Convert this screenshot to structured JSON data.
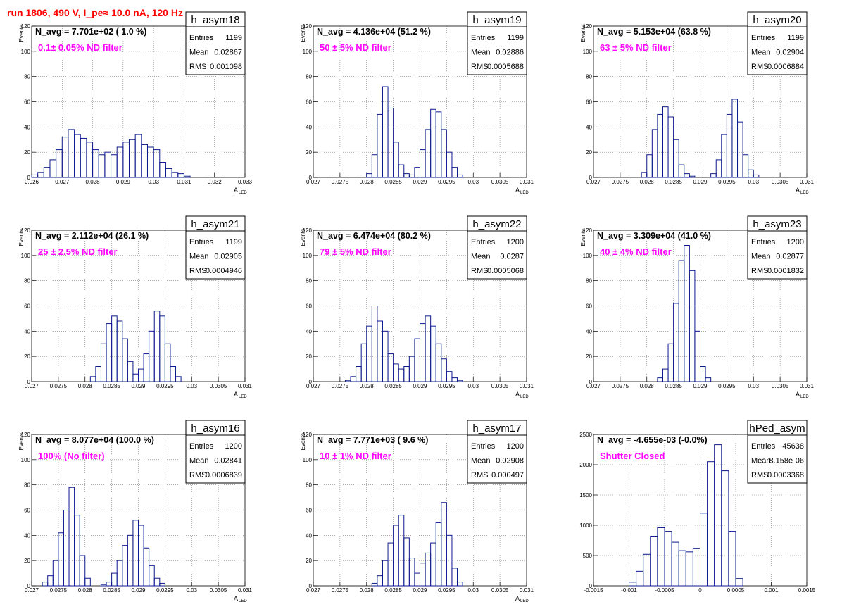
{
  "canvas_title": "run 1806,   490 V, I_pe≈ 10.0 nA, 120 Hz",
  "colors": {
    "hist": "#0b1a8c",
    "label": "#ff00ff",
    "title": "#ff0000",
    "grid": "#777777"
  },
  "chart_data": [
    {
      "type": "histogram",
      "name": "h_asym18",
      "nav": "N_avg = 7.701e+02 ( 1.0 %)",
      "filter": "0.1± 0.05% ND filter",
      "stats": [
        [
          "Entries",
          "1199"
        ],
        [
          "Mean",
          "0.02867"
        ],
        [
          "RMS",
          "0.001098"
        ]
      ],
      "ylabel": "Events",
      "xlabel": "A",
      "xlabel_sub": "LED",
      "xlim": [
        0.026,
        0.033
      ],
      "ylim": [
        0,
        120
      ],
      "xticks": [
        0.026,
        0.027,
        0.028,
        0.029,
        0.03,
        0.031,
        0.032,
        0.033
      ],
      "xtick_labels": [
        "0.026",
        "0.027",
        "0.028",
        "0.029",
        "0.03",
        "0.031",
        "0.032",
        "0.033"
      ],
      "yticks": [
        0,
        20,
        40,
        60,
        80,
        100,
        120
      ],
      "ytick_labels": [
        "0",
        "20",
        "40",
        "60",
        "80",
        "100",
        "120"
      ],
      "x": [
        0.0261,
        0.0263,
        0.0265,
        0.0267,
        0.0269,
        0.0271,
        0.0273,
        0.0275,
        0.0277,
        0.0279,
        0.0281,
        0.0283,
        0.0285,
        0.0287,
        0.0289,
        0.0291,
        0.0293,
        0.0295,
        0.0297,
        0.0299,
        0.0301,
        0.0303,
        0.0305,
        0.0307,
        0.0309,
        0.0311
      ],
      "y": [
        2,
        4,
        8,
        14,
        22,
        32,
        38,
        34,
        31,
        28,
        22,
        18,
        20,
        18,
        24,
        28,
        30,
        34,
        26,
        24,
        22,
        12,
        7,
        4,
        3,
        1
      ]
    },
    {
      "type": "histogram",
      "name": "h_asym19",
      "nav": "N_avg = 4.136e+04 (51.2 %)",
      "filter": "50 ± 5% ND filter",
      "stats": [
        [
          "Entries",
          "1199"
        ],
        [
          "Mean",
          "0.02886"
        ],
        [
          "RMS",
          "0.0005688"
        ]
      ],
      "ylabel": "Events",
      "xlabel": "A",
      "xlabel_sub": "LED",
      "xlim": [
        0.027,
        0.031
      ],
      "ylim": [
        0,
        120
      ],
      "xticks": [
        0.027,
        0.0275,
        0.028,
        0.0285,
        0.029,
        0.0295,
        0.03,
        0.0305,
        0.031
      ],
      "xtick_labels": [
        "0.027",
        "0.0275",
        "0.028",
        "0.0285",
        "0.029",
        "0.0295",
        "0.03",
        "0.0305",
        "0.031"
      ],
      "yticks": [
        0,
        20,
        40,
        60,
        80,
        100,
        120
      ],
      "ytick_labels": [
        "0",
        "20",
        "40",
        "60",
        "80",
        "100",
        "120"
      ],
      "x": [
        0.02805,
        0.02815,
        0.02825,
        0.02835,
        0.02845,
        0.02855,
        0.02865,
        0.02875,
        0.02885,
        0.02895,
        0.02905,
        0.02915,
        0.02925,
        0.02935,
        0.02945,
        0.02955,
        0.02965,
        0.02975
      ],
      "y": [
        3,
        18,
        50,
        72,
        55,
        28,
        10,
        3,
        2,
        8,
        22,
        38,
        54,
        52,
        38,
        20,
        8,
        2
      ]
    },
    {
      "type": "histogram",
      "name": "h_asym20",
      "nav": "N_avg = 5.153e+04 (63.8 %)",
      "filter": "63 ± 5% ND filter",
      "stats": [
        [
          "Entries",
          "1199"
        ],
        [
          "Mean",
          "0.02904"
        ],
        [
          "RMS",
          "0.0006884"
        ]
      ],
      "ylabel": "Events",
      "xlabel": "A",
      "xlabel_sub": "LED",
      "xlim": [
        0.027,
        0.031
      ],
      "ylim": [
        0,
        120
      ],
      "xticks": [
        0.027,
        0.0275,
        0.028,
        0.0285,
        0.029,
        0.0295,
        0.03,
        0.0305,
        0.031
      ],
      "xtick_labels": [
        "0.027",
        "0.0275",
        "0.028",
        "0.0285",
        "0.029",
        "0.0295",
        "0.03",
        "0.0305",
        "0.031"
      ],
      "yticks": [
        0,
        20,
        40,
        60,
        80,
        100,
        120
      ],
      "ytick_labels": [
        "0",
        "20",
        "40",
        "60",
        "80",
        "100",
        "120"
      ],
      "x": [
        0.02795,
        0.02805,
        0.02815,
        0.02825,
        0.02835,
        0.02845,
        0.02855,
        0.02865,
        0.02875,
        0.02885,
        0.02925,
        0.02935,
        0.02945,
        0.02955,
        0.02965,
        0.02975,
        0.02985,
        0.02995,
        0.03005
      ],
      "y": [
        4,
        18,
        38,
        50,
        56,
        48,
        30,
        10,
        3,
        1,
        3,
        14,
        34,
        50,
        62,
        44,
        18,
        6,
        2
      ]
    },
    {
      "type": "histogram",
      "name": "h_asym21",
      "nav": "N_avg = 2.112e+04 (26.1 %)",
      "filter": "25 ± 2.5% ND filter",
      "stats": [
        [
          "Entries",
          "1199"
        ],
        [
          "Mean",
          "0.02905"
        ],
        [
          "RMS",
          "0.0004946"
        ]
      ],
      "ylabel": "Events",
      "xlabel": "A",
      "xlabel_sub": "LED",
      "xlim": [
        0.027,
        0.031
      ],
      "ylim": [
        0,
        120
      ],
      "xticks": [
        0.027,
        0.0275,
        0.028,
        0.0285,
        0.029,
        0.0295,
        0.03,
        0.0305,
        0.031
      ],
      "xtick_labels": [
        "0.027",
        "0.0275",
        "0.028",
        "0.0285",
        "0.029",
        "0.0295",
        "0.03",
        "0.0305",
        "0.031"
      ],
      "yticks": [
        0,
        20,
        40,
        60,
        80,
        100,
        120
      ],
      "ytick_labels": [
        "0",
        "20",
        "40",
        "60",
        "80",
        "100",
        "120"
      ],
      "x": [
        0.02815,
        0.02825,
        0.02835,
        0.02845,
        0.02855,
        0.02865,
        0.02875,
        0.02885,
        0.02895,
        0.02905,
        0.02915,
        0.02925,
        0.02935,
        0.02945,
        0.02955,
        0.02965,
        0.02975
      ],
      "y": [
        4,
        12,
        30,
        46,
        52,
        48,
        34,
        16,
        6,
        10,
        22,
        40,
        56,
        52,
        30,
        12,
        4
      ]
    },
    {
      "type": "histogram",
      "name": "h_asym22",
      "nav": "N_avg = 6.474e+04 (80.2 %)",
      "filter": "79 ± 5% ND filter",
      "stats": [
        [
          "Entries",
          "1200"
        ],
        [
          "Mean",
          "0.0287"
        ],
        [
          "RMS",
          "0.0005068"
        ]
      ],
      "ylabel": "Events",
      "xlabel": "A",
      "xlabel_sub": "LED",
      "xlim": [
        0.027,
        0.031
      ],
      "ylim": [
        0,
        120
      ],
      "xticks": [
        0.027,
        0.0275,
        0.028,
        0.0285,
        0.029,
        0.0295,
        0.03,
        0.0305,
        0.031
      ],
      "xtick_labels": [
        "0.027",
        "0.0275",
        "0.028",
        "0.0285",
        "0.029",
        "0.0295",
        "0.03",
        "0.0305",
        "0.031"
      ],
      "yticks": [
        0,
        20,
        40,
        60,
        80,
        100,
        120
      ],
      "ytick_labels": [
        "0",
        "20",
        "40",
        "60",
        "80",
        "100",
        "120"
      ],
      "x": [
        0.02765,
        0.02775,
        0.02785,
        0.02795,
        0.02805,
        0.02815,
        0.02825,
        0.02835,
        0.02845,
        0.02855,
        0.02865,
        0.02875,
        0.02885,
        0.02895,
        0.02905,
        0.02915,
        0.02925,
        0.02935,
        0.02945,
        0.02955,
        0.02965,
        0.02975
      ],
      "y": [
        1,
        4,
        12,
        30,
        44,
        60,
        48,
        40,
        22,
        14,
        10,
        12,
        20,
        34,
        46,
        52,
        44,
        30,
        18,
        8,
        3,
        1
      ]
    },
    {
      "type": "histogram",
      "name": "h_asym23",
      "nav": "N_avg = 3.309e+04 (41.0 %)",
      "filter": "40 ± 4% ND filter",
      "stats": [
        [
          "Entries",
          "1200"
        ],
        [
          "Mean",
          "0.02877"
        ],
        [
          "RMS",
          "0.0001832"
        ]
      ],
      "ylabel": "Events",
      "xlabel": "A",
      "xlabel_sub": "LED",
      "xlim": [
        0.027,
        0.031
      ],
      "ylim": [
        0,
        120
      ],
      "xticks": [
        0.027,
        0.0275,
        0.028,
        0.0285,
        0.029,
        0.0295,
        0.03,
        0.0305,
        0.031
      ],
      "xtick_labels": [
        "0.027",
        "0.0275",
        "0.028",
        "0.0285",
        "0.029",
        "0.0295",
        "0.03",
        "0.0305",
        "0.031"
      ],
      "yticks": [
        0,
        20,
        40,
        60,
        80,
        100,
        120
      ],
      "ytick_labels": [
        "0",
        "20",
        "40",
        "60",
        "80",
        "100",
        "120"
      ],
      "x": [
        0.02825,
        0.02835,
        0.02845,
        0.02855,
        0.02865,
        0.02875,
        0.02885,
        0.02895,
        0.02905,
        0.02915
      ],
      "y": [
        3,
        10,
        30,
        62,
        96,
        108,
        88,
        40,
        12,
        3
      ]
    },
    {
      "type": "histogram",
      "name": "h_asym16",
      "nav": "N_avg = 8.077e+04 (100.0 %)",
      "filter": "100% (No filter)",
      "stats": [
        [
          "Entries",
          "1200"
        ],
        [
          "Mean",
          "0.02841"
        ],
        [
          "RMS",
          "0.0006839"
        ]
      ],
      "ylabel": "Events",
      "xlabel": "A",
      "xlabel_sub": "LED",
      "xlim": [
        0.027,
        0.031
      ],
      "ylim": [
        0,
        120
      ],
      "xticks": [
        0.027,
        0.0275,
        0.028,
        0.0285,
        0.029,
        0.0295,
        0.03,
        0.0305,
        0.031
      ],
      "xtick_labels": [
        "0.027",
        "0.0275",
        "0.028",
        "0.0285",
        "0.029",
        "0.0295",
        "0.03",
        "0.0305",
        "0.031"
      ],
      "yticks": [
        0,
        20,
        40,
        60,
        80,
        100,
        120
      ],
      "ytick_labels": [
        "0",
        "20",
        "40",
        "60",
        "80",
        "100",
        "120"
      ],
      "x": [
        0.02725,
        0.02735,
        0.02745,
        0.02755,
        0.02765,
        0.02775,
        0.02785,
        0.02795,
        0.02805,
        0.02835,
        0.02845,
        0.02855,
        0.02865,
        0.02875,
        0.02885,
        0.02895,
        0.02905,
        0.02915,
        0.02925,
        0.02935,
        0.02945
      ],
      "y": [
        3,
        8,
        20,
        42,
        60,
        78,
        56,
        24,
        6,
        1,
        3,
        10,
        20,
        32,
        40,
        52,
        48,
        30,
        16,
        6,
        2
      ]
    },
    {
      "type": "histogram",
      "name": "h_asym17",
      "nav": "N_avg = 7.771e+03 ( 9.6 %)",
      "filter": "10 ± 1% ND filter",
      "stats": [
        [
          "Entries",
          "1200"
        ],
        [
          "Mean",
          "0.02908"
        ],
        [
          "RMS",
          "0.000497"
        ]
      ],
      "ylabel": "Events",
      "xlabel": "A",
      "xlabel_sub": "LED",
      "xlim": [
        0.027,
        0.031
      ],
      "ylim": [
        0,
        120
      ],
      "xticks": [
        0.027,
        0.0275,
        0.028,
        0.0285,
        0.029,
        0.0295,
        0.03,
        0.0305,
        0.031
      ],
      "xtick_labels": [
        "0.027",
        "0.0275",
        "0.028",
        "0.0285",
        "0.029",
        "0.0295",
        "0.03",
        "0.0305",
        "0.031"
      ],
      "yticks": [
        0,
        20,
        40,
        60,
        80,
        100,
        120
      ],
      "ytick_labels": [
        "0",
        "20",
        "40",
        "60",
        "80",
        "100",
        "120"
      ],
      "x": [
        0.02815,
        0.02825,
        0.02835,
        0.02845,
        0.02855,
        0.02865,
        0.02875,
        0.02885,
        0.02895,
        0.02905,
        0.02915,
        0.02925,
        0.02935,
        0.02945,
        0.02955,
        0.02965,
        0.02975
      ],
      "y": [
        2,
        8,
        20,
        34,
        48,
        56,
        38,
        22,
        10,
        18,
        26,
        34,
        50,
        66,
        40,
        14,
        3
      ]
    },
    {
      "type": "histogram",
      "name": "hPed_asym",
      "nav": "N_avg = -4.655e-03 (-0.0%)",
      "filter": "Shutter Closed",
      "stats": [
        [
          "Entries",
          "45638"
        ],
        [
          "Mean",
          "-8.158e-06"
        ],
        [
          "RMS",
          "0.0003368"
        ]
      ],
      "ylabel": "",
      "xlabel": "",
      "xlabel_sub": "",
      "xlim": [
        -0.0015,
        0.0015
      ],
      "ylim": [
        0,
        2500
      ],
      "xticks": [
        -0.0015,
        -0.001,
        -0.0005,
        0,
        0.0005,
        0.001,
        0.0015
      ],
      "xtick_labels": [
        "-0.0015",
        "-0.001",
        "-0.0005",
        "0",
        "0.0005",
        "0.001",
        "0.0015"
      ],
      "yticks": [
        0,
        500,
        1000,
        1500,
        2000,
        2500
      ],
      "ytick_labels": [
        "0",
        "500",
        "1000",
        "1500",
        "2000",
        "2500"
      ],
      "x": [
        -0.00095,
        -0.00085,
        -0.00075,
        -0.00065,
        -0.00055,
        -0.00045,
        -0.00035,
        -0.00025,
        -0.00015,
        -5e-05,
        5e-05,
        0.00015,
        0.00025,
        0.00035,
        0.00045,
        0.00055
      ],
      "y": [
        60,
        240,
        520,
        820,
        960,
        900,
        720,
        580,
        560,
        620,
        1200,
        2050,
        2330,
        1900,
        900,
        120
      ]
    }
  ]
}
